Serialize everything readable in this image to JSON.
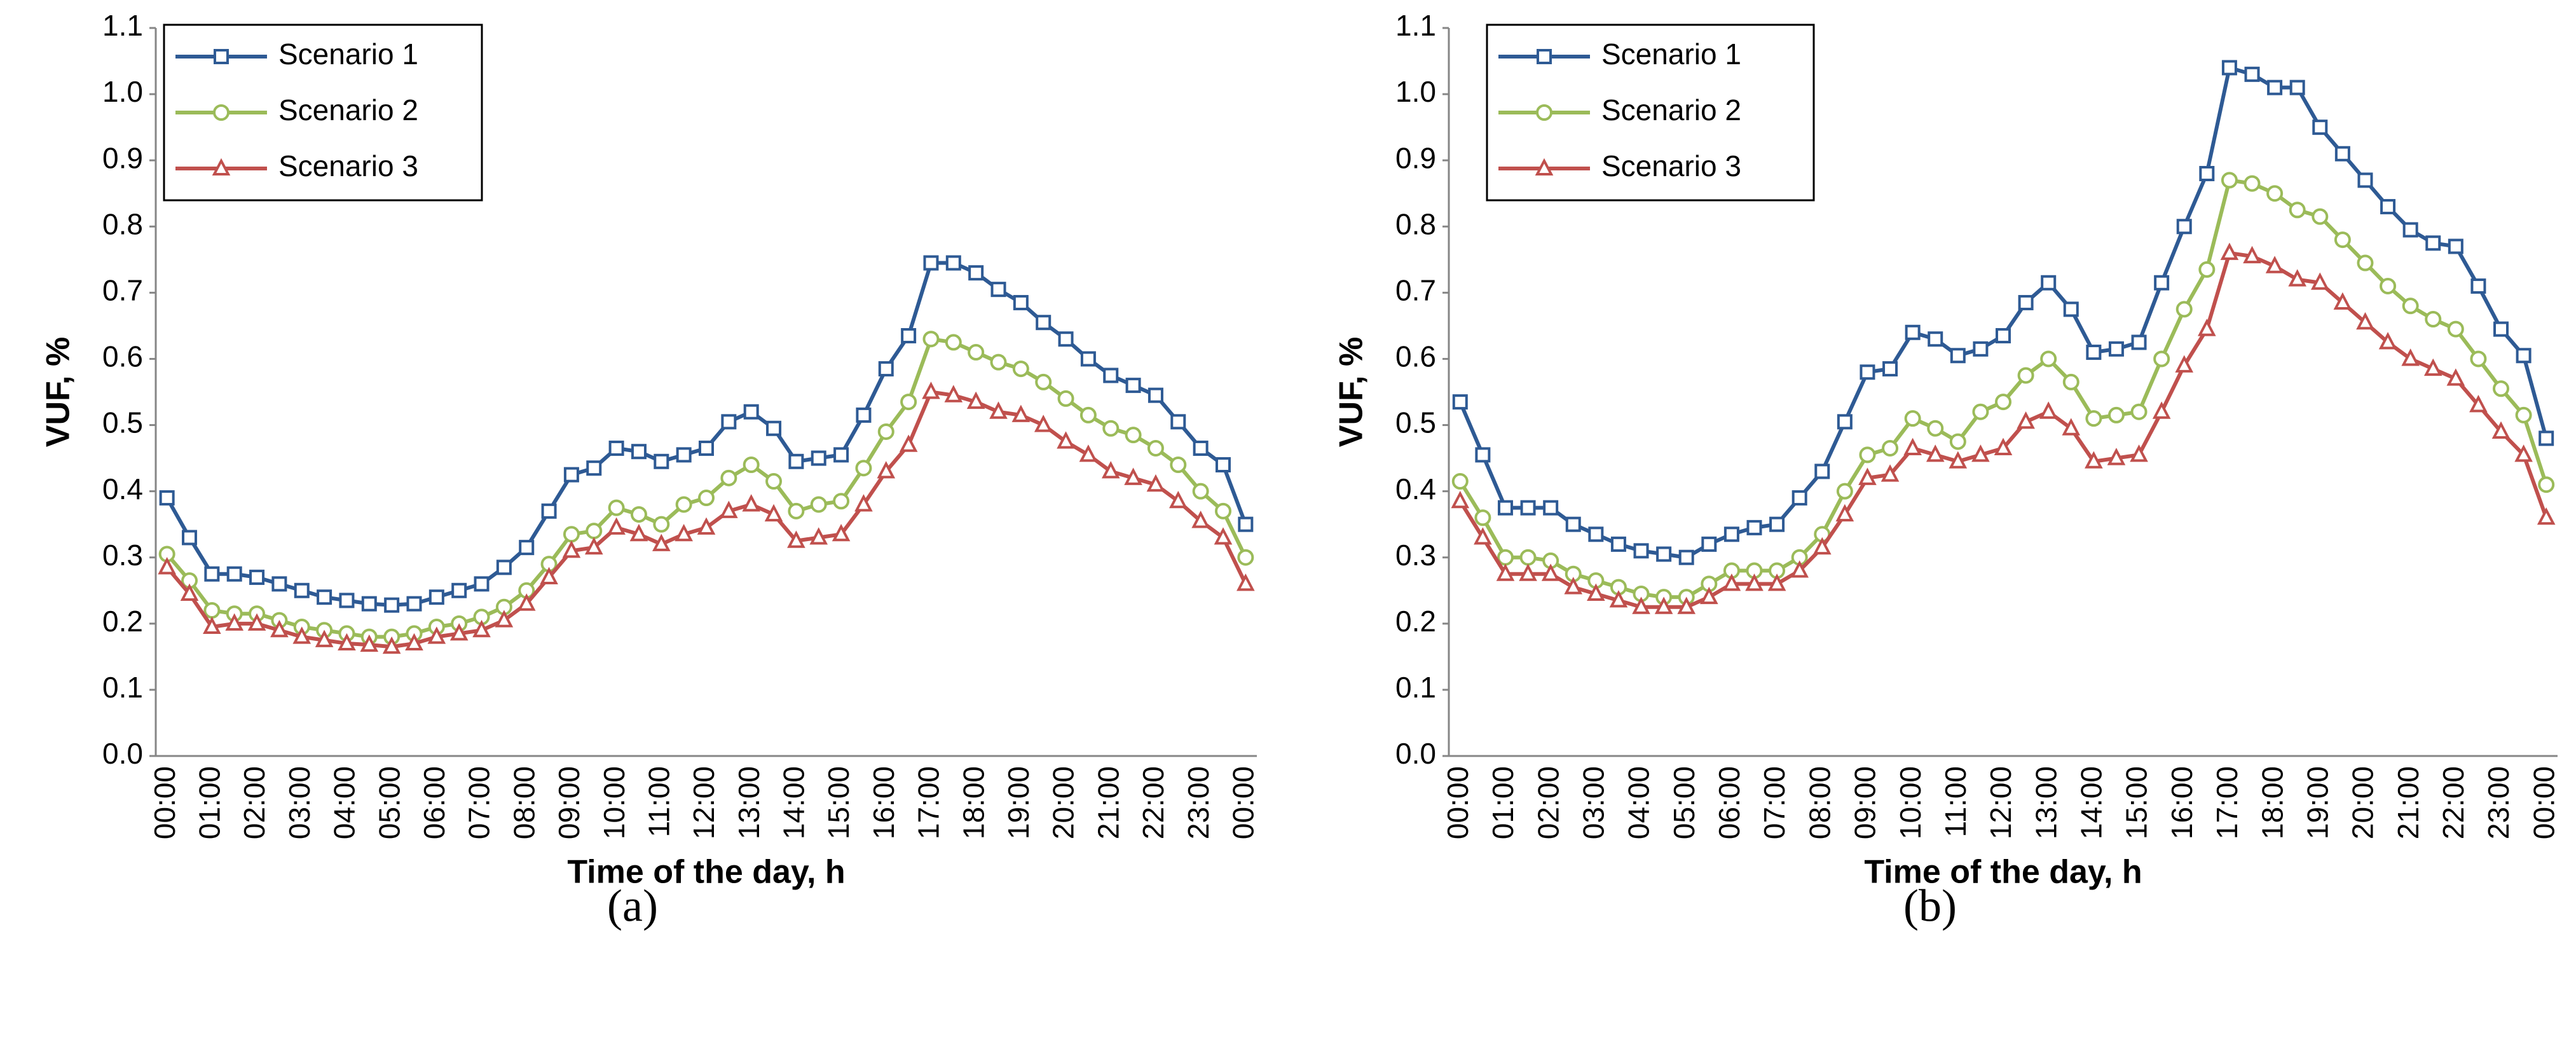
{
  "chart_data": [
    {
      "type": "line",
      "subplot_label": "(a)",
      "xlabel": "Time of the day, h",
      "ylabel": "VUF, %",
      "categories": [
        "00:00",
        null,
        "01:00",
        null,
        "02:00",
        null,
        "03:00",
        null,
        "04:00",
        null,
        "05:00",
        null,
        "06:00",
        null,
        "07:00",
        null,
        "08:00",
        null,
        "09:00",
        null,
        "10:00",
        null,
        "11:00",
        null,
        "12:00",
        null,
        "13:00",
        null,
        "14:00",
        null,
        "15:00",
        null,
        "16:00",
        null,
        "17:00",
        null,
        "18:00",
        null,
        "19:00",
        null,
        "20:00",
        null,
        "21:00",
        null,
        "22:00",
        null,
        "23:00",
        null,
        "00:00"
      ],
      "ylim": [
        0,
        1.1
      ],
      "yticks": [
        {
          "value": 0,
          "label": "0.0"
        },
        0.1,
        0.2,
        0.3,
        0.4,
        0.5,
        0.6,
        0.7,
        0.8,
        0.9,
        {
          "value": 1,
          "label": "1.0"
        },
        1.1
      ],
      "legend": "upper left",
      "grid": false,
      "series": [
        {
          "name": "Scenario 1",
          "color": "#2e5a94",
          "marker": "square",
          "values": [
            0.39,
            0.33,
            0.275,
            0.275,
            0.27,
            0.26,
            0.25,
            0.24,
            0.235,
            0.23,
            0.228,
            0.23,
            0.24,
            0.25,
            0.26,
            0.285,
            0.315,
            0.37,
            0.425,
            0.435,
            0.465,
            0.46,
            0.445,
            0.455,
            0.465,
            0.505,
            0.52,
            0.495,
            0.445,
            0.45,
            0.455,
            0.515,
            0.585,
            0.635,
            0.745,
            0.745,
            0.73,
            0.705,
            0.685,
            0.655,
            0.63,
            0.6,
            0.575,
            0.56,
            0.545,
            0.505,
            0.465,
            0.44,
            0.35
          ]
        },
        {
          "name": "Scenario 2",
          "color": "#9bbb59",
          "marker": "circle",
          "values": [
            0.305,
            0.265,
            0.22,
            0.215,
            0.215,
            0.205,
            0.195,
            0.19,
            0.185,
            0.18,
            0.18,
            0.185,
            0.195,
            0.2,
            0.21,
            0.225,
            0.25,
            0.29,
            0.335,
            0.34,
            0.375,
            0.365,
            0.35,
            0.38,
            0.39,
            0.42,
            0.44,
            0.415,
            0.37,
            0.38,
            0.385,
            0.435,
            0.49,
            0.535,
            0.63,
            0.625,
            0.61,
            0.595,
            0.585,
            0.565,
            0.54,
            0.515,
            0.495,
            0.485,
            0.465,
            0.44,
            0.4,
            0.37,
            0.3
          ]
        },
        {
          "name": "Scenario 3",
          "color": "#c0504d",
          "marker": "triangle",
          "values": [
            0.285,
            0.245,
            0.195,
            0.2,
            0.2,
            0.19,
            0.18,
            0.175,
            0.17,
            0.168,
            0.165,
            0.17,
            0.18,
            0.185,
            0.19,
            0.205,
            0.23,
            0.27,
            0.31,
            0.315,
            0.345,
            0.335,
            0.32,
            0.335,
            0.345,
            0.37,
            0.38,
            0.365,
            0.325,
            0.33,
            0.335,
            0.38,
            0.43,
            0.47,
            0.55,
            0.545,
            0.535,
            0.52,
            0.515,
            0.5,
            0.475,
            0.455,
            0.43,
            0.42,
            0.41,
            0.385,
            0.355,
            0.33,
            0.26
          ]
        }
      ]
    },
    {
      "type": "line",
      "subplot_label": "(b)",
      "xlabel": "Time of the day, h",
      "ylabel": "VUF, %",
      "categories": [
        "00:00",
        null,
        "01:00",
        null,
        "02:00",
        null,
        "03:00",
        null,
        "04:00",
        null,
        "05:00",
        null,
        "06:00",
        null,
        "07:00",
        null,
        "08:00",
        null,
        "09:00",
        null,
        "10:00",
        null,
        "11:00",
        null,
        "12:00",
        null,
        "13:00",
        null,
        "14:00",
        null,
        "15:00",
        null,
        "16:00",
        null,
        "17:00",
        null,
        "18:00",
        null,
        "19:00",
        null,
        "20:00",
        null,
        "21:00",
        null,
        "22:00",
        null,
        "23:00",
        null,
        "00:00"
      ],
      "ylim": [
        0,
        1.1
      ],
      "yticks": [
        {
          "value": 0,
          "label": "0.0"
        },
        0.1,
        0.2,
        0.3,
        0.4,
        0.5,
        0.6,
        0.7,
        0.8,
        0.9,
        {
          "value": 1,
          "label": "1.0"
        },
        1.1
      ],
      "legend": "upper left",
      "grid": false,
      "series": [
        {
          "name": "Scenario 1",
          "color": "#2e5a94",
          "marker": "square",
          "values": [
            0.535,
            0.455,
            0.375,
            0.375,
            0.375,
            0.35,
            0.335,
            0.32,
            0.31,
            0.305,
            0.3,
            0.32,
            0.335,
            0.345,
            0.35,
            0.39,
            0.43,
            0.505,
            0.58,
            0.585,
            0.64,
            0.63,
            0.605,
            0.615,
            0.635,
            0.685,
            0.715,
            0.675,
            0.61,
            0.615,
            0.625,
            0.715,
            0.8,
            0.88,
            1.04,
            1.03,
            1.01,
            1.01,
            0.95,
            0.91,
            0.87,
            0.83,
            0.795,
            0.775,
            0.77,
            0.71,
            0.645,
            0.605,
            0.48
          ]
        },
        {
          "name": "Scenario 2",
          "color": "#9bbb59",
          "marker": "circle",
          "values": [
            0.415,
            0.36,
            0.3,
            0.3,
            0.295,
            0.275,
            0.265,
            0.255,
            0.245,
            0.24,
            0.24,
            0.26,
            0.28,
            0.28,
            0.28,
            0.3,
            0.335,
            0.4,
            0.455,
            0.465,
            0.51,
            0.495,
            0.475,
            0.52,
            0.535,
            0.575,
            0.6,
            0.565,
            0.51,
            0.515,
            0.52,
            0.6,
            0.675,
            0.735,
            0.87,
            0.865,
            0.85,
            0.825,
            0.815,
            0.78,
            0.745,
            0.71,
            0.68,
            0.66,
            0.645,
            0.6,
            0.555,
            0.515,
            0.41
          ]
        },
        {
          "name": "Scenario 3",
          "color": "#c0504d",
          "marker": "triangle",
          "values": [
            0.385,
            0.33,
            0.275,
            0.275,
            0.275,
            0.255,
            0.245,
            0.235,
            0.225,
            0.225,
            0.225,
            0.24,
            0.26,
            0.26,
            0.26,
            0.28,
            0.315,
            0.365,
            0.42,
            0.425,
            0.465,
            0.455,
            0.445,
            0.455,
            0.465,
            0.505,
            0.52,
            0.495,
            0.445,
            0.45,
            0.455,
            0.52,
            0.59,
            0.645,
            0.76,
            0.755,
            0.74,
            0.72,
            0.715,
            0.685,
            0.655,
            0.625,
            0.6,
            0.585,
            0.57,
            0.53,
            0.49,
            0.455,
            0.36
          ]
        }
      ]
    }
  ]
}
